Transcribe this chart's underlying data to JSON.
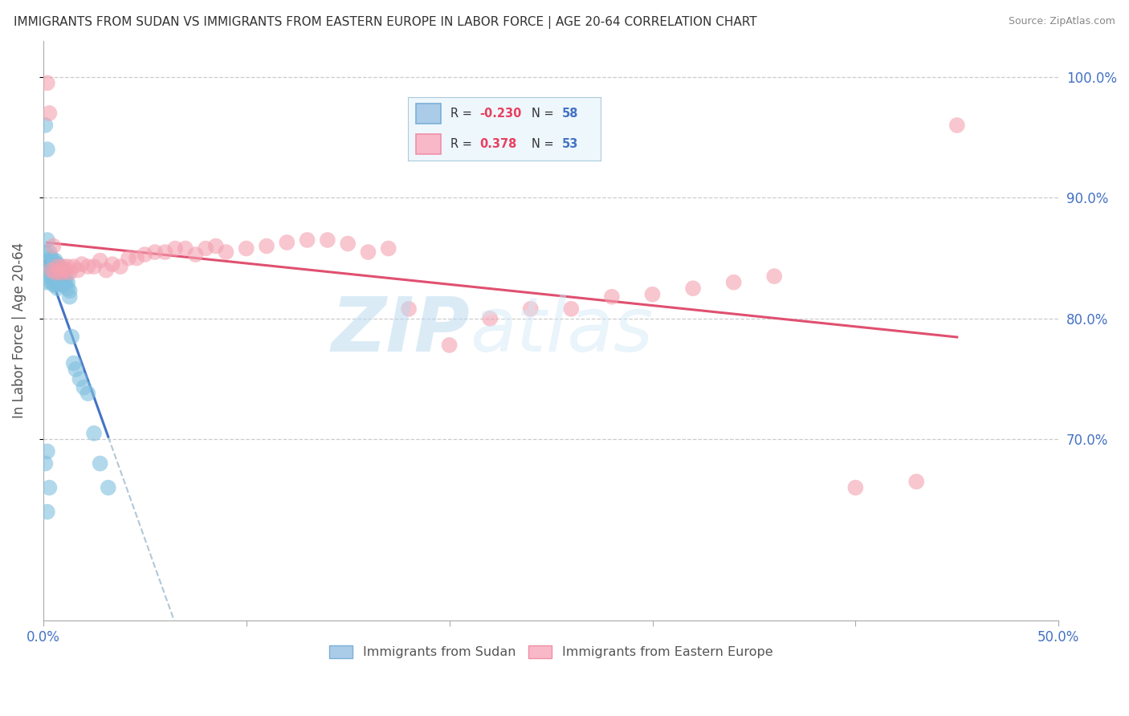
{
  "title": "IMMIGRANTS FROM SUDAN VS IMMIGRANTS FROM EASTERN EUROPE IN LABOR FORCE | AGE 20-64 CORRELATION CHART",
  "source": "Source: ZipAtlas.com",
  "ylabel": "In Labor Force | Age 20-64",
  "right_ytick_vals": [
    0.7,
    0.8,
    0.9,
    1.0
  ],
  "right_ytick_labels": [
    "70.0%",
    "80.0%",
    "90.0%",
    "100.0%"
  ],
  "xlim": [
    0.0,
    0.5
  ],
  "ylim": [
    0.55,
    1.03
  ],
  "watermark": "ZIPatlas",
  "sudan_color": "#7fbfdf",
  "eastern_color": "#f4a0b0",
  "sudan_line_color": "#4472c4",
  "eastern_line_color": "#e05070",
  "dashed_color": "#b0c8d8",
  "grid_color": "#cccccc",
  "axis_label_color": "#4472c4",
  "sudan_R": -0.23,
  "sudan_N": 58,
  "eastern_R": 0.378,
  "eastern_N": 53,
  "sudan_x": [
    0.001,
    0.001,
    0.001,
    0.002,
    0.002,
    0.002,
    0.003,
    0.003,
    0.003,
    0.003,
    0.004,
    0.004,
    0.004,
    0.004,
    0.005,
    0.005,
    0.005,
    0.005,
    0.005,
    0.006,
    0.006,
    0.006,
    0.006,
    0.006,
    0.007,
    0.007,
    0.007,
    0.007,
    0.007,
    0.008,
    0.008,
    0.008,
    0.008,
    0.009,
    0.009,
    0.009,
    0.01,
    0.01,
    0.01,
    0.011,
    0.011,
    0.012,
    0.012,
    0.013,
    0.013,
    0.014,
    0.015,
    0.016,
    0.018,
    0.02,
    0.022,
    0.025,
    0.028,
    0.032,
    0.002,
    0.003,
    0.001,
    0.002
  ],
  "sudan_y": [
    0.96,
    0.855,
    0.83,
    0.94,
    0.865,
    0.84,
    0.855,
    0.848,
    0.84,
    0.835,
    0.85,
    0.845,
    0.838,
    0.83,
    0.848,
    0.843,
    0.838,
    0.833,
    0.828,
    0.848,
    0.843,
    0.838,
    0.833,
    0.828,
    0.845,
    0.84,
    0.835,
    0.83,
    0.825,
    0.843,
    0.838,
    0.833,
    0.828,
    0.84,
    0.835,
    0.83,
    0.838,
    0.833,
    0.828,
    0.835,
    0.83,
    0.83,
    0.825,
    0.823,
    0.818,
    0.785,
    0.763,
    0.758,
    0.75,
    0.743,
    0.738,
    0.705,
    0.68,
    0.66,
    0.69,
    0.66,
    0.68,
    0.64
  ],
  "eastern_x": [
    0.002,
    0.003,
    0.004,
    0.005,
    0.006,
    0.007,
    0.008,
    0.009,
    0.01,
    0.011,
    0.012,
    0.013,
    0.015,
    0.017,
    0.019,
    0.022,
    0.025,
    0.028,
    0.031,
    0.034,
    0.038,
    0.042,
    0.046,
    0.05,
    0.055,
    0.06,
    0.065,
    0.07,
    0.075,
    0.08,
    0.085,
    0.09,
    0.1,
    0.11,
    0.12,
    0.13,
    0.14,
    0.15,
    0.16,
    0.17,
    0.18,
    0.2,
    0.22,
    0.24,
    0.26,
    0.28,
    0.3,
    0.32,
    0.34,
    0.36,
    0.4,
    0.43,
    0.45
  ],
  "eastern_y": [
    0.995,
    0.97,
    0.84,
    0.86,
    0.838,
    0.843,
    0.84,
    0.838,
    0.843,
    0.84,
    0.843,
    0.838,
    0.843,
    0.84,
    0.845,
    0.843,
    0.843,
    0.848,
    0.84,
    0.845,
    0.843,
    0.85,
    0.85,
    0.853,
    0.855,
    0.855,
    0.858,
    0.858,
    0.853,
    0.858,
    0.86,
    0.855,
    0.858,
    0.86,
    0.863,
    0.865,
    0.865,
    0.862,
    0.855,
    0.858,
    0.808,
    0.778,
    0.8,
    0.808,
    0.808,
    0.818,
    0.82,
    0.825,
    0.83,
    0.835,
    0.66,
    0.665,
    0.96
  ],
  "sudan_trend_x0": 0.001,
  "sudan_trend_x1": 0.032,
  "sudan_trend_xdash_end": 0.5,
  "eastern_trend_x0": 0.002,
  "eastern_trend_x1": 0.45,
  "legend_sudan_label": "Immigrants from Sudan",
  "legend_eastern_label": "Immigrants from Eastern Europe"
}
